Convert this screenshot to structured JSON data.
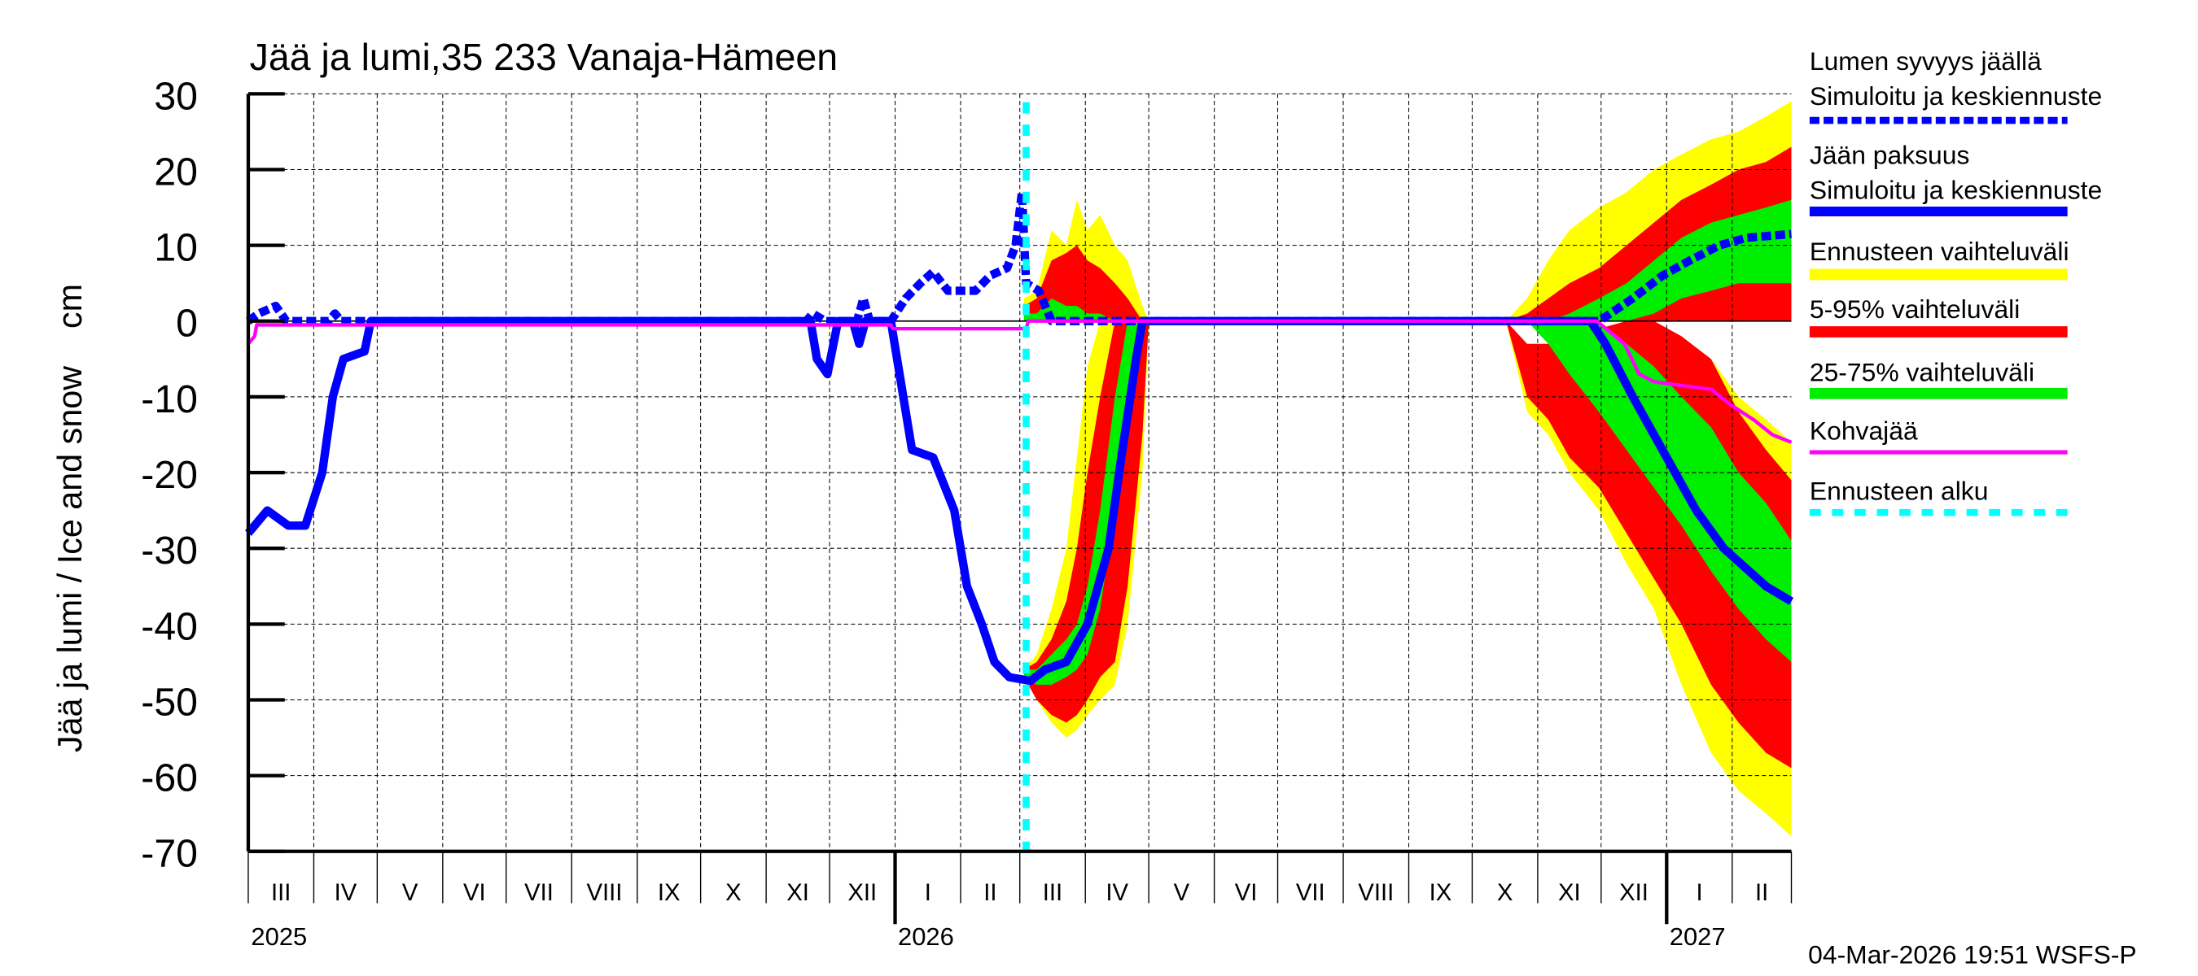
{
  "chart_data": {
    "type": "area",
    "title": "Jää ja lumi,35 233 Vanaja-Hämeen",
    "ylabel": "Jää ja lumi / Ice and snow    cm",
    "ylim": [
      -70,
      30
    ],
    "yticks": [
      "30",
      "20",
      "10",
      "0",
      "-10",
      "-20",
      "-30",
      "-40",
      "-50",
      "-60",
      "-70"
    ],
    "xlim": [
      "2025-03-01",
      "2027-03-01"
    ],
    "grid": true,
    "legend_position": "right",
    "month_labels": [
      "III",
      "IV",
      "V",
      "VI",
      "VII",
      "VIII",
      "IX",
      "X",
      "XI",
      "XII",
      "I",
      "II",
      "III",
      "IV",
      "V",
      "VI",
      "VII",
      "VIII",
      "IX",
      "X",
      "XI",
      "XII",
      "I",
      "II"
    ],
    "year_labels": [
      {
        "label": "2025",
        "date": "2025-03-01"
      },
      {
        "label": "2026",
        "date": "2026-01-01"
      },
      {
        "label": "2027",
        "date": "2027-01-01"
      }
    ],
    "forecast_start": "2026-03-04",
    "timestamp": "04-Mar-2026 19:51 WSFS-P",
    "legend": {
      "snow_title": "Lumen syvyys jäällä",
      "snow_sub": "Simuloitu ja keskiennuste",
      "ice_title": "Jään paksuus",
      "ice_sub": "Simuloitu ja keskiennuste",
      "range": "Ennusteen vaihteluväli",
      "p5_95": "5-95% vaihteluväli",
      "p25_75": "25-75% vaihteluväli",
      "slush": "Kohvajää",
      "fc_start": "Ennusteen alku"
    },
    "colors": {
      "snow": "#0000ff",
      "ice": "#0000ff",
      "range": "#ffff00",
      "p5_95": "#ff0000",
      "p25_75": "#00ee00",
      "slush": "#ff00ff",
      "fc_start": "#00ffff"
    },
    "series": [
      {
        "name": "Jään paksuus",
        "style": "solid",
        "x": [
          "2025-03-01",
          "2025-03-10",
          "2025-03-20",
          "2025-03-28",
          "2025-04-05",
          "2025-04-10",
          "2025-04-15",
          "2025-04-25",
          "2025-04-28",
          "2025-11-22",
          "2025-11-25",
          "2025-11-30",
          "2025-12-05",
          "2025-12-12",
          "2025-12-15",
          "2025-12-18",
          "2025-12-30",
          "2026-01-09",
          "2026-01-19",
          "2026-01-29",
          "2026-02-04",
          "2026-02-11",
          "2026-02-17",
          "2026-02-24",
          "2026-03-06",
          "2026-03-13",
          "2026-03-23",
          "2026-04-02",
          "2026-04-12",
          "2026-04-18",
          "2026-04-25",
          "2026-04-28",
          "2026-11-26",
          "2026-12-03",
          "2026-12-16",
          "2026-12-26",
          "2027-01-05",
          "2027-01-15",
          "2027-01-28",
          "2027-02-17",
          "2027-03-01"
        ],
        "y": [
          -28,
          -25,
          -27,
          -27,
          -20,
          -10,
          -5,
          -4,
          0,
          0,
          -5,
          -7,
          0,
          0,
          -3,
          0,
          0,
          -17,
          -18,
          -25,
          -35,
          -40,
          -45,
          -47,
          -47.5,
          -46,
          -45,
          -40,
          -30,
          -18,
          -5,
          0,
          0,
          -3,
          -10,
          -15,
          -20,
          -25,
          -30,
          -35,
          -37
        ]
      },
      {
        "name": "Lumen syvyys jäällä",
        "style": "dashed",
        "x": [
          "2025-03-01",
          "2025-03-06",
          "2025-03-14",
          "2025-03-19",
          "2025-04-08",
          "2025-04-11",
          "2025-04-14",
          "2025-11-20",
          "2025-11-23",
          "2025-11-29",
          "2025-12-14",
          "2025-12-17",
          "2025-12-20",
          "2025-12-30",
          "2026-01-06",
          "2026-01-13",
          "2026-01-19",
          "2026-01-26",
          "2026-02-08",
          "2026-02-15",
          "2026-02-23",
          "2026-02-27",
          "2026-03-02",
          "2026-03-04",
          "2026-03-10",
          "2026-03-16",
          "2026-11-30",
          "2026-12-16",
          "2026-12-30",
          "2027-01-12",
          "2027-01-26",
          "2027-02-08",
          "2027-03-01"
        ],
        "y": [
          0,
          1,
          2,
          0,
          0,
          1,
          0,
          0,
          1,
          0,
          0,
          3,
          0,
          0,
          3,
          5,
          6.5,
          4,
          4,
          6,
          7,
          10,
          17,
          5,
          4,
          0,
          0,
          3,
          6,
          8,
          10,
          11,
          11.5
        ]
      },
      {
        "name": "Kohvajää",
        "style": "thin",
        "x": [
          "2025-03-01",
          "2025-03-04",
          "2025-03-05",
          "2025-12-30",
          "2025-12-31",
          "2026-03-04",
          "2026-03-05",
          "2026-11-29",
          "2026-12-12",
          "2026-12-19",
          "2026-12-26",
          "2027-01-08",
          "2027-01-22",
          "2027-01-31",
          "2027-02-11",
          "2027-02-20",
          "2027-03-01"
        ],
        "y": [
          -3,
          -2,
          -0.5,
          -0.5,
          -1,
          -1,
          0,
          0,
          -3,
          -7,
          -8,
          -8.5,
          -9,
          -11,
          -13,
          -15,
          -16
        ]
      }
    ],
    "bands": [
      {
        "name": "Ennusteen vaihteluväli",
        "color": "#ffff00",
        "segments": [
          {
            "x": [
              "2026-03-03",
              "2026-03-09",
              "2026-03-16",
              "2026-03-23",
              "2026-03-28",
              "2026-04-02",
              "2026-04-08",
              "2026-04-15",
              "2026-04-21",
              "2026-04-28",
              "2026-05-01"
            ],
            "lo": [
              0,
              0,
              0,
              0,
              0,
              0,
              0,
              0,
              0,
              0,
              0
            ],
            "hi": [
              3,
              4,
              12,
              10,
              16,
              12,
              14,
              10,
              8,
              2,
              0
            ]
          },
          {
            "x": [
              "2026-03-03",
              "2026-03-09",
              "2026-03-16",
              "2026-03-23",
              "2026-03-28",
              "2026-04-02",
              "2026-04-08",
              "2026-04-15",
              "2026-04-21",
              "2026-04-28",
              "2026-05-01"
            ],
            "lo": [
              -47,
              -50,
              -53,
              -55,
              -54,
              -52,
              -50,
              -48,
              -40,
              -20,
              0
            ],
            "hi": [
              -46,
              -44,
              -38,
              -30,
              -18,
              -6,
              0,
              0,
              0,
              0,
              0
            ]
          },
          {
            "x": [
              "2026-10-17",
              "2026-10-27",
              "2026-11-06",
              "2026-11-16",
              "2026-11-30",
              "2026-12-13",
              "2026-12-26",
              "2027-01-08",
              "2027-01-22",
              "2027-02-04",
              "2027-02-17",
              "2027-03-01"
            ],
            "lo": [
              0,
              0,
              0,
              0,
              0,
              0,
              0,
              0,
              0,
              0,
              0,
              0
            ],
            "hi": [
              0,
              3,
              8,
              12,
              15,
              17,
              20,
              22,
              24,
              25,
              27,
              29
            ]
          },
          {
            "x": [
              "2026-10-17",
              "2026-10-27",
              "2026-11-06",
              "2026-11-16",
              "2026-11-30",
              "2026-12-13",
              "2026-12-26",
              "2027-01-08",
              "2027-01-22",
              "2027-02-04",
              "2027-02-17",
              "2027-03-01"
            ],
            "lo": [
              0,
              -12,
              -15,
              -20,
              -25,
              -32,
              -38,
              -48,
              -57,
              -62,
              -65,
              -68
            ],
            "hi": [
              0,
              -5,
              -5,
              -5,
              -3,
              -2,
              0,
              -3,
              -5,
              -10,
              -13,
              -16
            ]
          }
        ]
      },
      {
        "name": "5-95% vaihteluväli",
        "color": "#ff0000",
        "segments": [
          {
            "x": [
              "2026-03-03",
              "2026-03-09",
              "2026-03-16",
              "2026-03-23",
              "2026-03-28",
              "2026-04-02",
              "2026-04-08",
              "2026-04-15",
              "2026-04-21",
              "2026-04-28",
              "2026-05-01"
            ],
            "lo": [
              0,
              0,
              0,
              0,
              0,
              0,
              0,
              0,
              0,
              0,
              0
            ],
            "hi": [
              2,
              3,
              8,
              9,
              10,
              8,
              7,
              5,
              3,
              0,
              0
            ]
          },
          {
            "x": [
              "2026-03-03",
              "2026-03-09",
              "2026-03-16",
              "2026-03-23",
              "2026-03-28",
              "2026-04-02",
              "2026-04-08",
              "2026-04-15",
              "2026-04-21",
              "2026-04-28",
              "2026-05-01"
            ],
            "lo": [
              -47,
              -50,
              -52,
              -53,
              -52,
              -50,
              -47,
              -45,
              -35,
              -15,
              0
            ],
            "hi": [
              -46,
              -45,
              -42,
              -37,
              -30,
              -20,
              -10,
              0,
              0,
              0,
              0
            ]
          },
          {
            "x": [
              "2026-10-17",
              "2026-10-27",
              "2026-11-06",
              "2026-11-16",
              "2026-11-30",
              "2026-12-13",
              "2026-12-26",
              "2027-01-08",
              "2027-01-22",
              "2027-02-04",
              "2027-02-17",
              "2027-03-01"
            ],
            "lo": [
              0,
              0,
              0,
              0,
              0,
              0,
              0,
              0,
              0,
              0,
              0,
              0
            ],
            "hi": [
              0,
              1,
              3,
              5,
              7,
              10,
              13,
              16,
              18,
              20,
              21,
              23
            ]
          },
          {
            "x": [
              "2026-10-17",
              "2026-10-27",
              "2026-11-06",
              "2026-11-16",
              "2026-11-30",
              "2026-12-13",
              "2026-12-26",
              "2027-01-08",
              "2027-01-22",
              "2027-02-04",
              "2027-02-17",
              "2027-03-01"
            ],
            "lo": [
              0,
              -10,
              -13,
              -18,
              -22,
              -28,
              -34,
              -40,
              -48,
              -53,
              -57,
              -59
            ],
            "hi": [
              0,
              -3,
              -3,
              -2,
              -1,
              0,
              0,
              -2,
              -5,
              -12,
              -17,
              -21
            ]
          }
        ]
      },
      {
        "name": "25-75% vaihteluväli",
        "color": "#00ee00",
        "segments": [
          {
            "x": [
              "2026-03-03",
              "2026-03-09",
              "2026-03-16",
              "2026-03-23",
              "2026-03-28",
              "2026-04-02",
              "2026-04-08",
              "2026-04-15",
              "2026-04-21",
              "2026-04-28",
              "2026-05-01"
            ],
            "lo": [
              0,
              0,
              0,
              0,
              0,
              0,
              0,
              0,
              0,
              0,
              0
            ],
            "hi": [
              1,
              1,
              3,
              2,
              2,
              1,
              1,
              0,
              0,
              0,
              0
            ]
          },
          {
            "x": [
              "2026-03-03",
              "2026-03-09",
              "2026-03-16",
              "2026-03-23",
              "2026-03-28",
              "2026-04-02",
              "2026-04-08",
              "2026-04-15",
              "2026-04-21",
              "2026-04-28",
              "2026-05-01"
            ],
            "lo": [
              -47,
              -48,
              -48,
              -47,
              -46,
              -44,
              -38,
              -25,
              -10,
              0,
              0
            ],
            "hi": [
              -46,
              -46,
              -44,
              -42,
              -40,
              -35,
              -25,
              -10,
              0,
              0,
              0
            ]
          },
          {
            "x": [
              "2026-10-17",
              "2026-10-27",
              "2026-11-06",
              "2026-11-16",
              "2026-11-30",
              "2026-12-13",
              "2026-12-26",
              "2027-01-08",
              "2027-01-22",
              "2027-02-04",
              "2027-02-17",
              "2027-03-01"
            ],
            "lo": [
              0,
              0,
              0,
              0,
              0,
              0,
              1,
              3,
              4,
              5,
              5,
              5
            ],
            "hi": [
              0,
              0,
              0,
              1,
              3,
              5,
              8,
              11,
              13,
              14,
              15,
              16
            ]
          },
          {
            "x": [
              "2026-10-17",
              "2026-10-27",
              "2026-11-06",
              "2026-11-16",
              "2026-11-30",
              "2026-12-13",
              "2026-12-26",
              "2027-01-08",
              "2027-01-22",
              "2027-02-04",
              "2027-02-17",
              "2027-03-01"
            ],
            "lo": [
              0,
              0,
              -3,
              -7,
              -12,
              -17,
              -22,
              -27,
              -33,
              -38,
              -42,
              -45
            ],
            "hi": [
              0,
              0,
              0,
              0,
              0,
              -3,
              -6,
              -10,
              -14,
              -20,
              -24,
              -29
            ]
          }
        ]
      }
    ]
  }
}
